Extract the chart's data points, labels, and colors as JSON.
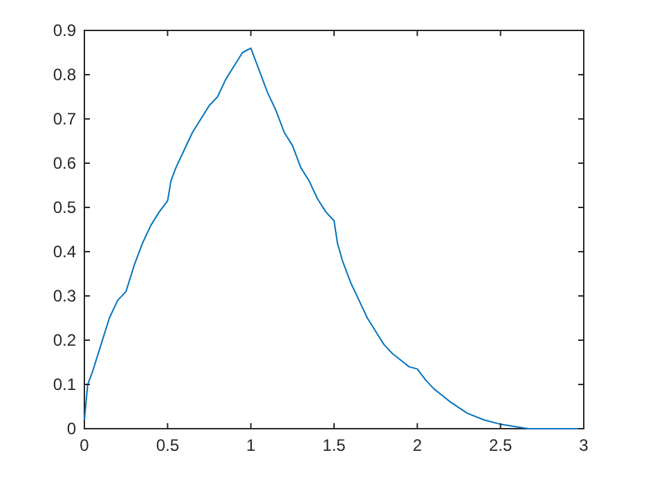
{
  "chart_data": {
    "type": "line",
    "xlim": [
      0,
      3
    ],
    "xticks": [
      0,
      0.5,
      1,
      1.5,
      2,
      2.5,
      3
    ],
    "ylim": [
      0,
      0.9
    ],
    "yticks": [
      0,
      0.1,
      0.2,
      0.3,
      0.4,
      0.5,
      0.6,
      0.7,
      0.8,
      0.9
    ],
    "grid": false,
    "marker": "none",
    "line_style": "solid",
    "series": [
      {
        "color": "#0072bd",
        "x": [
          0,
          0.02,
          0.05,
          0.1,
          0.15,
          0.2,
          0.25,
          0.3,
          0.35,
          0.4,
          0.45,
          0.5,
          0.52,
          0.55,
          0.6,
          0.65,
          0.7,
          0.75,
          0.8,
          0.85,
          0.9,
          0.95,
          1.0,
          1.02,
          1.05,
          1.1,
          1.15,
          1.2,
          1.25,
          1.3,
          1.35,
          1.4,
          1.45,
          1.5,
          1.52,
          1.55,
          1.6,
          1.65,
          1.7,
          1.75,
          1.8,
          1.85,
          1.9,
          1.95,
          2.0,
          2.05,
          2.1,
          2.15,
          2.2,
          2.3,
          2.4,
          2.5,
          2.6,
          2.67,
          3
        ],
        "values": [
          0.02,
          0.1,
          0.13,
          0.19,
          0.25,
          0.29,
          0.31,
          0.37,
          0.42,
          0.46,
          0.49,
          0.515,
          0.56,
          0.59,
          0.63,
          0.67,
          0.7,
          0.73,
          0.75,
          0.79,
          0.82,
          0.85,
          0.86,
          0.84,
          0.81,
          0.76,
          0.72,
          0.67,
          0.64,
          0.59,
          0.56,
          0.52,
          0.49,
          0.47,
          0.42,
          0.38,
          0.33,
          0.29,
          0.25,
          0.22,
          0.19,
          0.17,
          0.155,
          0.14,
          0.135,
          0.11,
          0.09,
          0.075,
          0.06,
          0.035,
          0.02,
          0.01,
          0.004,
          0,
          0
        ]
      }
    ]
  }
}
